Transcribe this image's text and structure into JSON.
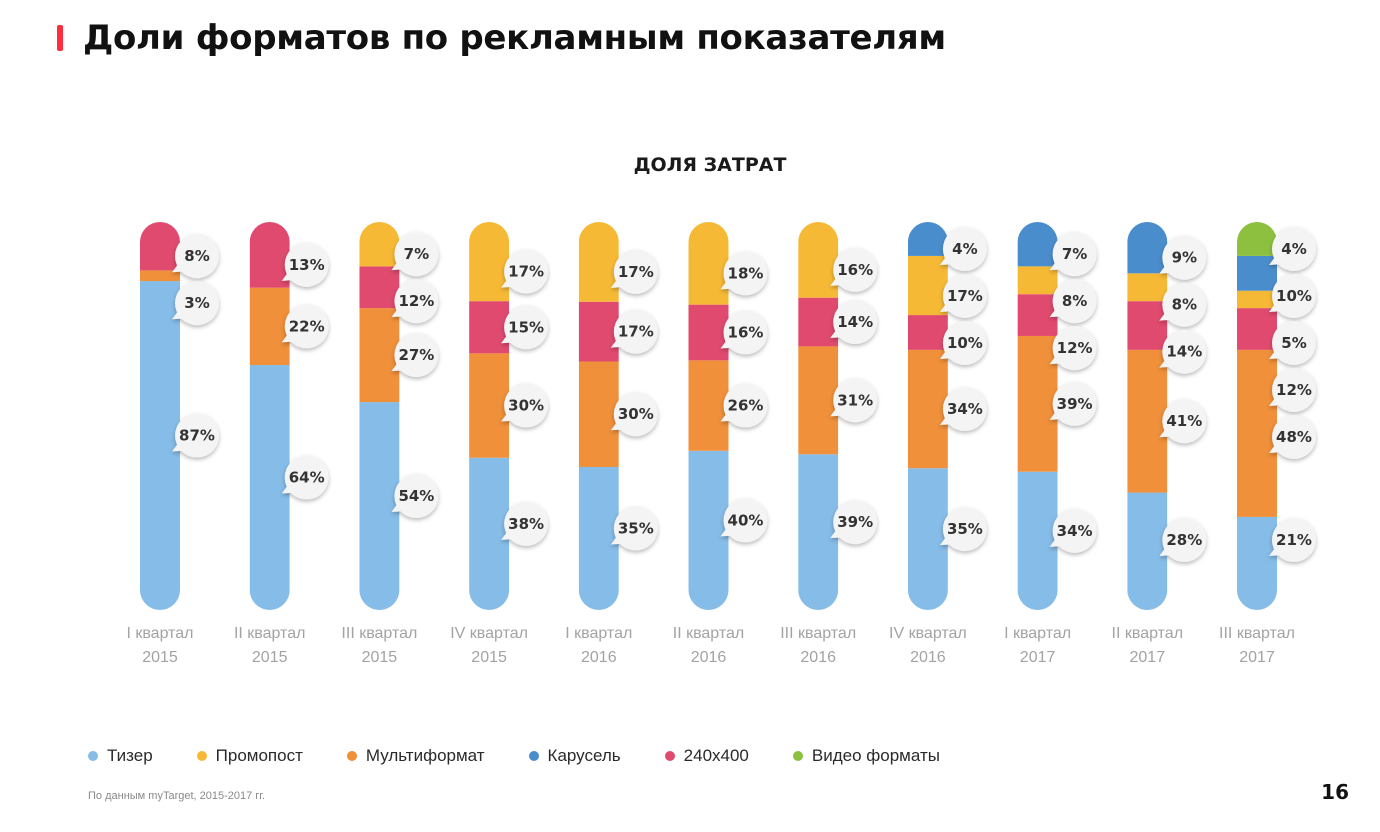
{
  "header": {
    "title": "Доли форматов по рекламным показателям",
    "accent_color": "#ff2d3d"
  },
  "chart_data": {
    "type": "bar",
    "stacked": true,
    "normalized_to_percent": true,
    "title": "ДОЛЯ ЗАТРАТ",
    "categories": [
      [
        "I квартал",
        "2015"
      ],
      [
        "II квартал",
        "2015"
      ],
      [
        "III квартал",
        "2015"
      ],
      [
        "IV квартал",
        "2015"
      ],
      [
        "I квартал",
        "2016"
      ],
      [
        "II квартал",
        "2016"
      ],
      [
        "III квартал",
        "2016"
      ],
      [
        "IV квартал",
        "2016"
      ],
      [
        "I квартал",
        "2017"
      ],
      [
        "II квартал",
        "2017"
      ],
      [
        "III квартал",
        "2017"
      ]
    ],
    "series": [
      {
        "name": "Тизер",
        "color": "#86bce8",
        "values": [
          87,
          64,
          54,
          38,
          35,
          40,
          39,
          35,
          34,
          28,
          21
        ]
      },
      {
        "name": "Мультиформат",
        "color": "#f0903a",
        "values": [
          3,
          22,
          27,
          30,
          30,
          26,
          31,
          34,
          39,
          41,
          48
        ]
      },
      {
        "name": "240x400",
        "color": "#e04a6f",
        "values": [
          8,
          13,
          12,
          15,
          17,
          16,
          14,
          10,
          12,
          14,
          12
        ]
      },
      {
        "name": "Промопост",
        "color": "#f6b935",
        "values": [
          0,
          0,
          7,
          17,
          17,
          18,
          16,
          17,
          8,
          8,
          5
        ]
      },
      {
        "name": "Карусель",
        "color": "#4a8dcc",
        "values": [
          0,
          0,
          0,
          0,
          0,
          0,
          0,
          4,
          7,
          9,
          10
        ]
      },
      {
        "name": "Видео форматы",
        "color": "#8dc03f",
        "values": [
          0,
          0,
          0,
          0,
          0,
          0,
          0,
          0,
          0,
          0,
          4
        ]
      }
    ],
    "ylim": [
      0,
      100
    ],
    "grid": false,
    "legend": "bottom"
  },
  "legend": {
    "items": [
      {
        "label": "Тизер",
        "color": "#86bce8"
      },
      {
        "label": "Промопост",
        "color": "#f6b935"
      },
      {
        "label": "Мультиформат",
        "color": "#f0903a"
      },
      {
        "label": "Карусель",
        "color": "#4a8dcc"
      },
      {
        "label": "240x400",
        "color": "#e04a6f"
      },
      {
        "label": "Видео форматы",
        "color": "#8dc03f"
      }
    ]
  },
  "footer": {
    "source": "По данным myTarget, 2015-2017 гг.",
    "page_number": "16"
  }
}
